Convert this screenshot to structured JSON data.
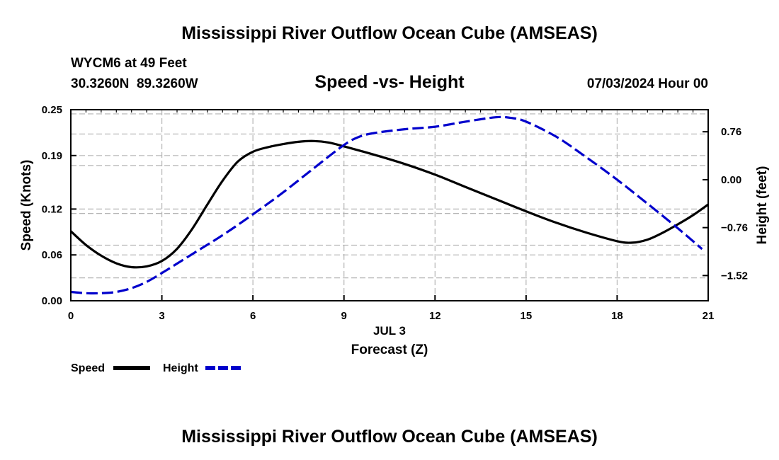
{
  "page": {
    "title_top": "Mississippi River Outflow Ocean Cube (AMSEAS)",
    "title_bottom": "Mississippi River Outflow Ocean Cube (AMSEAS)",
    "station": "WYCM6 at 49 Feet",
    "coords": "30.3260N  89.3260W",
    "subtitle": "Speed -vs- Height",
    "datetime": "07/03/2024 Hour 00"
  },
  "chart_data": {
    "type": "line",
    "title": "Speed -vs- Height",
    "xlabel": "Forecast (Z)",
    "xlabel_date": "JUL 3",
    "x_ticks": [
      0,
      3,
      6,
      9,
      12,
      15,
      18,
      21
    ],
    "x_tick_labels": [
      "0",
      "3",
      "6",
      "9",
      "12",
      "15",
      "18",
      "21"
    ],
    "xlim": [
      0,
      21
    ],
    "ylabel_left": "Speed (Knots)",
    "ylim_left": [
      0,
      0.25
    ],
    "y_left_ticks": [
      0.0,
      0.06,
      0.12,
      0.19,
      0.25
    ],
    "y_left_tick_labels": [
      "0.00",
      "0.06",
      "0.12",
      "0.19",
      "0.25"
    ],
    "ylabel_right": "Height (feet)",
    "ylim_right": [
      -1.92,
      1.11
    ],
    "y_right_ticks": [
      -1.52,
      -0.76,
      0.0,
      0.76
    ],
    "y_right_tick_labels": [
      "−1.52",
      "−0.76",
      "0.00",
      "0.76"
    ],
    "grid": true,
    "legend": [
      {
        "name": "Speed",
        "color": "#000000",
        "style": "solid"
      },
      {
        "name": "Height",
        "color": "#0000cc",
        "style": "dashed"
      }
    ],
    "series": [
      {
        "name": "Speed",
        "axis": "left",
        "color": "#000000",
        "x": [
          0,
          0.5,
          1,
          1.5,
          2,
          2.5,
          3,
          3.5,
          4,
          4.5,
          5,
          5.5,
          6,
          6.5,
          7,
          7.5,
          8,
          8.5,
          9,
          10,
          11,
          12,
          13,
          14,
          15,
          16,
          17,
          18,
          18.5,
          19,
          19.5,
          20,
          20.5,
          21
        ],
        "values": [
          0.091,
          0.073,
          0.059,
          0.049,
          0.044,
          0.045,
          0.052,
          0.068,
          0.094,
          0.126,
          0.157,
          0.182,
          0.195,
          0.201,
          0.205,
          0.208,
          0.209,
          0.207,
          0.202,
          0.191,
          0.179,
          0.165,
          0.149,
          0.133,
          0.117,
          0.102,
          0.089,
          0.078,
          0.076,
          0.08,
          0.089,
          0.1,
          0.112,
          0.126
        ]
      },
      {
        "name": "Height",
        "axis": "right",
        "color": "#0000cc",
        "x": [
          0,
          0.5,
          1,
          1.5,
          2,
          2.5,
          3,
          4,
          5,
          6,
          7,
          8,
          9,
          9.5,
          10,
          11,
          12,
          13,
          14,
          14.5,
          15,
          16,
          17,
          18,
          19,
          20,
          20.8
        ],
        "values": [
          -1.78,
          -1.8,
          -1.8,
          -1.78,
          -1.72,
          -1.62,
          -1.48,
          -1.18,
          -0.88,
          -0.55,
          -0.2,
          0.18,
          0.55,
          0.68,
          0.74,
          0.8,
          0.84,
          0.92,
          0.99,
          0.98,
          0.92,
          0.68,
          0.35,
          0.0,
          -0.38,
          -0.77,
          -1.1
        ]
      }
    ]
  }
}
